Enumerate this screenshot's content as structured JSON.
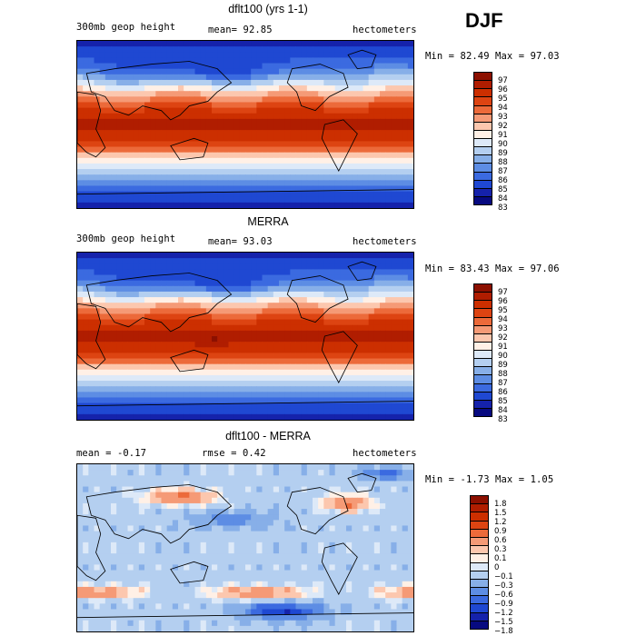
{
  "season": "DJF",
  "panels": [
    {
      "title": "dflt100 (yrs 1-1)",
      "left_label": "300mb geop height",
      "center_label": "mean=  92.85",
      "right_label": "hectometers",
      "minmax": "Min =  82.49 Max =  97.03",
      "colorbar": {
        "labels": [
          "97",
          "96",
          "95",
          "94",
          "93",
          "92",
          "91",
          "90",
          "89",
          "88",
          "87",
          "86",
          "85",
          "84",
          "83"
        ],
        "colors": [
          "#8c1000",
          "#b01d00",
          "#cc2f00",
          "#dd4412",
          "#ec6a3a",
          "#f59a76",
          "#fcc7ae",
          "#fff0e6",
          "#dde9f8",
          "#b4cff0",
          "#87afe8",
          "#5d8de4",
          "#3b6ae0",
          "#1f48d2",
          "#1522ab",
          "#070a80"
        ]
      },
      "field": "height_a"
    },
    {
      "title": "MERRA",
      "left_label": "300mb geop height",
      "center_label": "mean=  93.03",
      "right_label": "hectometers",
      "minmax": "Min =  83.43 Max =  97.06",
      "colorbar": {
        "labels": [
          "97",
          "96",
          "95",
          "94",
          "93",
          "92",
          "91",
          "90",
          "89",
          "88",
          "87",
          "86",
          "85",
          "84",
          "83"
        ],
        "colors": [
          "#8c1000",
          "#b01d00",
          "#cc2f00",
          "#dd4412",
          "#ec6a3a",
          "#f59a76",
          "#fcc7ae",
          "#fff0e6",
          "#dde9f8",
          "#b4cff0",
          "#87afe8",
          "#5d8de4",
          "#3b6ae0",
          "#1f48d2",
          "#1522ab",
          "#070a80"
        ]
      },
      "field": "height_b"
    },
    {
      "title": "dflt100 - MERRA",
      "left_label": "mean =  -0.17",
      "center_label": "rmse =   0.42",
      "right_label": "hectometers",
      "minmax": "Min =  -1.73 Max =   1.05",
      "colorbar": {
        "labels": [
          "1.8",
          "1.5",
          "1.2",
          "0.9",
          "0.6",
          "0.3",
          "0.1",
          "0",
          "−0.1",
          "−0.3",
          "−0.6",
          "−0.9",
          "−1.2",
          "−1.5",
          "−1.8"
        ],
        "colors": [
          "#8c1000",
          "#b01d00",
          "#cc2f00",
          "#dd4412",
          "#ec6a3a",
          "#f59a76",
          "#fcc7ae",
          "#fff0e6",
          "#dde9f8",
          "#b4cff0",
          "#87afe8",
          "#5d8de4",
          "#3b6ae0",
          "#1f48d2",
          "#1522ab",
          "#070a80"
        ]
      },
      "field": "diff"
    }
  ]
}
